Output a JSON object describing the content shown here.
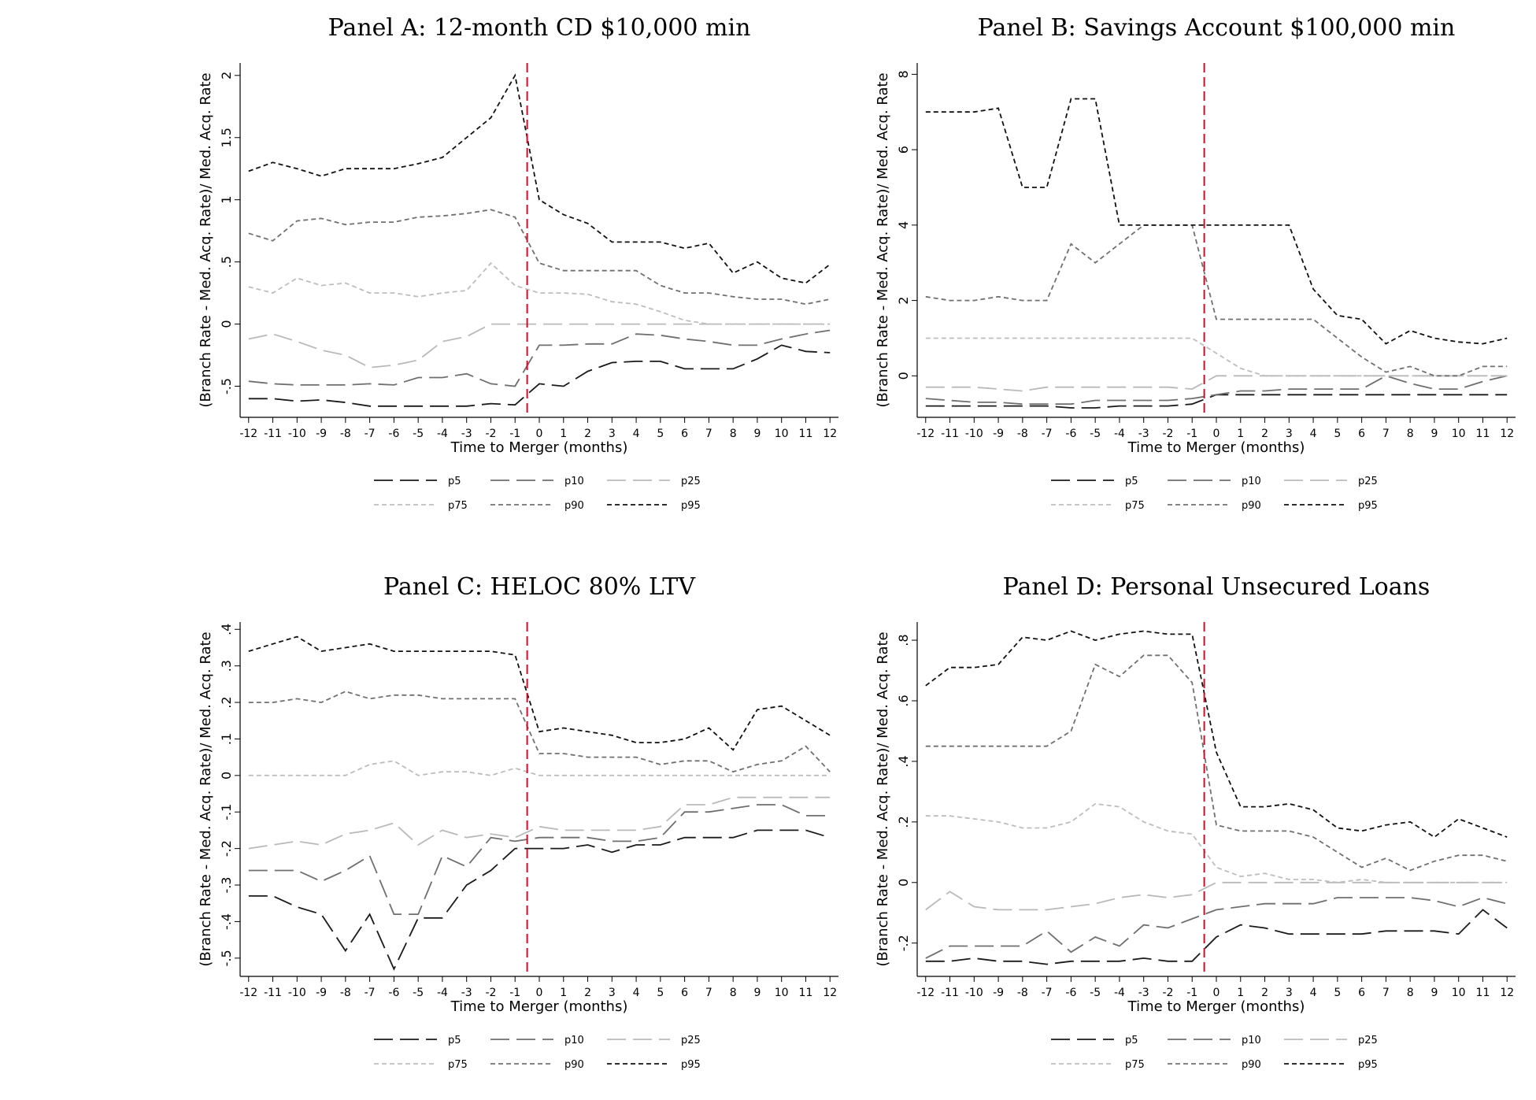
{
  "chart_data": [
    {
      "type": "line",
      "title": "Panel A: 12-month CD $10,000 min",
      "xlabel": "Time to Merger (months)",
      "ylabel": "(Branch Rate - Med. Acq. Rate)/ Med. Acq. Rate",
      "x": [
        -12,
        -11,
        -10,
        -9,
        -8,
        -7,
        -6,
        -5,
        -4,
        -3,
        -2,
        -1,
        0,
        1,
        2,
        3,
        4,
        5,
        6,
        7,
        8,
        9,
        10,
        11,
        12
      ],
      "x_tick_labels": [
        "-12",
        "-11",
        "-10",
        "-9",
        "-8",
        "-7",
        "-6",
        "-5",
        "-4",
        "-3",
        "-2",
        "-1",
        "0",
        "1",
        "2",
        "3",
        "4",
        "5",
        "6",
        "7",
        "8",
        "9",
        "10",
        "11",
        "12"
      ],
      "ylim": [
        -0.75,
        2.1
      ],
      "y_ticks": [
        -0.5,
        0,
        0.5,
        1,
        1.5,
        2
      ],
      "y_tick_labels": [
        "-.5",
        "0",
        ".5",
        "1",
        "1.5",
        "2"
      ],
      "merger_line_x": -0.5,
      "series": [
        {
          "name": "p5",
          "values": [
            -0.6,
            -0.6,
            -0.62,
            -0.61,
            -0.63,
            -0.66,
            -0.66,
            -0.66,
            -0.66,
            -0.66,
            -0.64,
            -0.65,
            -0.48,
            -0.5,
            -0.38,
            -0.31,
            -0.3,
            -0.3,
            -0.36,
            -0.36,
            -0.36,
            -0.28,
            -0.17,
            -0.22,
            -0.23
          ]
        },
        {
          "name": "p10",
          "values": [
            -0.46,
            -0.48,
            -0.49,
            -0.49,
            -0.49,
            -0.48,
            -0.49,
            -0.43,
            -0.43,
            -0.4,
            -0.48,
            -0.5,
            -0.17,
            -0.17,
            -0.16,
            -0.16,
            -0.08,
            -0.09,
            -0.12,
            -0.14,
            -0.17,
            -0.17,
            -0.12,
            -0.08,
            -0.05
          ]
        },
        {
          "name": "p25",
          "values": [
            -0.12,
            -0.08,
            -0.14,
            -0.21,
            -0.25,
            -0.35,
            -0.33,
            -0.29,
            -0.14,
            -0.1,
            0,
            0,
            0,
            0,
            0,
            0,
            0,
            0,
            0,
            0,
            0,
            0,
            0,
            0,
            0
          ]
        },
        {
          "name": "p75",
          "values": [
            0.3,
            0.25,
            0.37,
            0.31,
            0.33,
            0.25,
            0.25,
            0.22,
            0.25,
            0.27,
            0.49,
            0.31,
            0.25,
            0.25,
            0.24,
            0.18,
            0.16,
            0.1,
            0.03,
            0,
            0,
            0,
            0,
            0,
            0
          ]
        },
        {
          "name": "p90",
          "values": [
            0.73,
            0.67,
            0.83,
            0.85,
            0.8,
            0.82,
            0.82,
            0.86,
            0.87,
            0.89,
            0.92,
            0.86,
            0.49,
            0.43,
            0.43,
            0.43,
            0.43,
            0.31,
            0.25,
            0.25,
            0.22,
            0.2,
            0.2,
            0.16,
            0.2
          ]
        },
        {
          "name": "p95",
          "values": [
            1.23,
            1.3,
            1.25,
            1.19,
            1.25,
            1.25,
            1.25,
            1.29,
            1.34,
            1.5,
            1.66,
            2.0,
            1.0,
            0.88,
            0.81,
            0.66,
            0.66,
            0.66,
            0.61,
            0.65,
            0.41,
            0.5,
            0.37,
            0.33,
            0.48
          ]
        }
      ]
    },
    {
      "type": "line",
      "title": "Panel B: Savings Account $100,000 min",
      "xlabel": "Time to Merger (months)",
      "ylabel": "(Branch Rate - Med. Acq. Rate)/ Med. Acq. Rate",
      "x": [
        -12,
        -11,
        -10,
        -9,
        -8,
        -7,
        -6,
        -5,
        -4,
        -3,
        -2,
        -1,
        0,
        1,
        2,
        3,
        4,
        5,
        6,
        7,
        8,
        9,
        10,
        11,
        12
      ],
      "x_tick_labels": [
        "-12",
        "-11",
        "-10",
        "-9",
        "-8",
        "-7",
        "-6",
        "-5",
        "-4",
        "-3",
        "-2",
        "-1",
        "0",
        "1",
        "2",
        "3",
        "4",
        "5",
        "6",
        "7",
        "8",
        "9",
        "10",
        "11",
        "12"
      ],
      "ylim": [
        -1.1,
        8.3
      ],
      "y_ticks": [
        0,
        2,
        4,
        6,
        8
      ],
      "y_tick_labels": [
        "0",
        "2",
        "4",
        "6",
        "8"
      ],
      "merger_line_x": -0.5,
      "series": [
        {
          "name": "p5",
          "values": [
            -0.8,
            -0.8,
            -0.8,
            -0.8,
            -0.8,
            -0.8,
            -0.85,
            -0.85,
            -0.8,
            -0.8,
            -0.8,
            -0.75,
            -0.5,
            -0.5,
            -0.5,
            -0.5,
            -0.5,
            -0.5,
            -0.5,
            -0.5,
            -0.5,
            -0.5,
            -0.5,
            -0.5,
            -0.5
          ]
        },
        {
          "name": "p10",
          "values": [
            -0.6,
            -0.65,
            -0.7,
            -0.7,
            -0.75,
            -0.75,
            -0.75,
            -0.65,
            -0.65,
            -0.65,
            -0.65,
            -0.6,
            -0.5,
            -0.4,
            -0.4,
            -0.35,
            -0.35,
            -0.35,
            -0.35,
            0,
            -0.2,
            -0.35,
            -0.35,
            -0.15,
            0
          ]
        },
        {
          "name": "p25",
          "values": [
            -0.3,
            -0.3,
            -0.3,
            -0.35,
            -0.4,
            -0.3,
            -0.3,
            -0.3,
            -0.3,
            -0.3,
            -0.3,
            -0.35,
            0,
            0,
            0,
            0,
            0,
            0,
            0,
            0,
            0,
            0,
            0,
            0,
            0
          ]
        },
        {
          "name": "p75",
          "values": [
            1,
            1,
            1,
            1,
            1,
            1,
            1,
            1,
            1,
            1,
            1,
            1,
            0.6,
            0.2,
            0,
            0,
            0,
            0,
            0,
            0,
            0,
            0,
            0,
            0,
            0
          ]
        },
        {
          "name": "p90",
          "values": [
            2.1,
            2,
            2,
            2.1,
            2,
            2,
            3.5,
            3,
            3.5,
            4,
            4,
            4,
            1.5,
            1.5,
            1.5,
            1.5,
            1.5,
            1,
            0.5,
            0.1,
            0.25,
            0,
            0,
            0.25,
            0.25
          ]
        },
        {
          "name": "p95",
          "values": [
            7,
            7,
            7,
            7.1,
            5,
            5,
            7.35,
            7.35,
            4,
            4,
            4,
            4,
            4,
            4,
            4,
            4,
            2.3,
            1.6,
            1.5,
            0.85,
            1.2,
            1,
            0.9,
            0.85,
            1
          ]
        }
      ]
    },
    {
      "type": "line",
      "title": "Panel C: HELOC 80% LTV",
      "xlabel": "Time to Merger (months)",
      "ylabel": "(Branch Rate - Med. Acq. Rate)/ Med. Acq. Rate",
      "x": [
        -12,
        -11,
        -10,
        -9,
        -8,
        -7,
        -6,
        -5,
        -4,
        -3,
        -2,
        -1,
        0,
        1,
        2,
        3,
        4,
        5,
        6,
        7,
        8,
        9,
        10,
        11,
        12
      ],
      "x_tick_labels": [
        "-12",
        "-11",
        "-10",
        "-9",
        "-8",
        "-7",
        "-6",
        "-5",
        "-4",
        "-3",
        "-2",
        "-1",
        "0",
        "1",
        "2",
        "3",
        "4",
        "5",
        "6",
        "7",
        "8",
        "9",
        "10",
        "11",
        "12"
      ],
      "ylim": [
        -0.55,
        0.42
      ],
      "y_ticks": [
        -0.5,
        -0.4,
        -0.3,
        -0.2,
        -0.1,
        0,
        0.1,
        0.2,
        0.3,
        0.4
      ],
      "y_tick_labels": [
        "-.5",
        "-.4",
        "-.3",
        "-.2",
        "-.1",
        "0",
        ".1",
        ".2",
        ".3",
        ".4"
      ],
      "merger_line_x": -0.5,
      "series": [
        {
          "name": "p5",
          "values": [
            -0.33,
            -0.33,
            -0.36,
            -0.38,
            -0.48,
            -0.38,
            -0.53,
            -0.39,
            -0.39,
            -0.3,
            -0.26,
            -0.2,
            -0.2,
            -0.2,
            -0.19,
            -0.21,
            -0.19,
            -0.19,
            -0.17,
            -0.17,
            -0.17,
            -0.15,
            -0.15,
            -0.15,
            -0.17
          ]
        },
        {
          "name": "p10",
          "values": [
            -0.26,
            -0.26,
            -0.26,
            -0.29,
            -0.26,
            -0.22,
            -0.38,
            -0.38,
            -0.22,
            -0.25,
            -0.17,
            -0.18,
            -0.17,
            -0.17,
            -0.17,
            -0.18,
            -0.18,
            -0.17,
            -0.1,
            -0.1,
            -0.09,
            -0.08,
            -0.08,
            -0.11,
            -0.11
          ]
        },
        {
          "name": "p25",
          "values": [
            -0.2,
            -0.19,
            -0.18,
            -0.19,
            -0.16,
            -0.15,
            -0.13,
            -0.19,
            -0.15,
            -0.17,
            -0.16,
            -0.17,
            -0.14,
            -0.15,
            -0.15,
            -0.15,
            -0.15,
            -0.14,
            -0.08,
            -0.08,
            -0.06,
            -0.06,
            -0.06,
            -0.06,
            -0.06
          ]
        },
        {
          "name": "p75",
          "values": [
            0,
            0,
            0,
            0,
            0,
            0.03,
            0.04,
            0,
            0.01,
            0.01,
            0,
            0.02,
            0,
            0,
            0,
            0,
            0,
            0,
            0,
            0,
            0,
            0,
            0,
            0,
            0
          ]
        },
        {
          "name": "p90",
          "values": [
            0.2,
            0.2,
            0.21,
            0.2,
            0.23,
            0.21,
            0.22,
            0.22,
            0.21,
            0.21,
            0.21,
            0.21,
            0.06,
            0.06,
            0.05,
            0.05,
            0.05,
            0.03,
            0.04,
            0.04,
            0.01,
            0.03,
            0.04,
            0.08,
            0.01
          ]
        },
        {
          "name": "p95",
          "values": [
            0.34,
            0.36,
            0.38,
            0.34,
            0.35,
            0.36,
            0.34,
            0.34,
            0.34,
            0.34,
            0.34,
            0.33,
            0.12,
            0.13,
            0.12,
            0.11,
            0.09,
            0.09,
            0.1,
            0.13,
            0.07,
            0.18,
            0.19,
            0.15,
            0.11
          ]
        }
      ]
    },
    {
      "type": "line",
      "title": "Panel D: Personal Unsecured Loans",
      "xlabel": "Time to Merger (months)",
      "ylabel": "(Branch Rate - Med. Acq. Rate)/ Med. Acq. Rate",
      "x": [
        -12,
        -11,
        -10,
        -9,
        -8,
        -7,
        -6,
        -5,
        -4,
        -3,
        -2,
        -1,
        0,
        1,
        2,
        3,
        4,
        5,
        6,
        7,
        8,
        9,
        10,
        11,
        12
      ],
      "x_tick_labels": [
        "-12",
        "-11",
        "-10",
        "-9",
        "-8",
        "-7",
        "-6",
        "-5",
        "-4",
        "-3",
        "-2",
        "-1",
        "0",
        "1",
        "2",
        "3",
        "4",
        "5",
        "6",
        "7",
        "8",
        "9",
        "10",
        "11",
        "12"
      ],
      "ylim": [
        -0.31,
        0.86
      ],
      "y_ticks": [
        -0.2,
        0,
        0.2,
        0.4,
        0.6,
        0.8
      ],
      "y_tick_labels": [
        "-.2",
        "0",
        ".2",
        ".4",
        ".6",
        ".8"
      ],
      "merger_line_x": -0.5,
      "series": [
        {
          "name": "p5",
          "values": [
            -0.26,
            -0.26,
            -0.25,
            -0.26,
            -0.26,
            -0.27,
            -0.26,
            -0.26,
            -0.26,
            -0.25,
            -0.26,
            -0.26,
            -0.18,
            -0.14,
            -0.15,
            -0.17,
            -0.17,
            -0.17,
            -0.17,
            -0.16,
            -0.16,
            -0.16,
            -0.17,
            -0.09,
            -0.15
          ]
        },
        {
          "name": "p10",
          "values": [
            -0.25,
            -0.21,
            -0.21,
            -0.21,
            -0.21,
            -0.16,
            -0.23,
            -0.18,
            -0.21,
            -0.14,
            -0.15,
            -0.12,
            -0.09,
            -0.08,
            -0.07,
            -0.07,
            -0.07,
            -0.05,
            -0.05,
            -0.05,
            -0.05,
            -0.06,
            -0.08,
            -0.05,
            -0.07
          ]
        },
        {
          "name": "p25",
          "values": [
            -0.09,
            -0.03,
            -0.08,
            -0.09,
            -0.09,
            -0.09,
            -0.08,
            -0.07,
            -0.05,
            -0.04,
            -0.05,
            -0.04,
            0,
            0,
            0,
            0,
            0,
            0,
            0,
            0,
            0,
            0,
            0,
            0,
            0
          ]
        },
        {
          "name": "p75",
          "values": [
            0.22,
            0.22,
            0.21,
            0.2,
            0.18,
            0.18,
            0.2,
            0.26,
            0.25,
            0.2,
            0.17,
            0.16,
            0.05,
            0.02,
            0.03,
            0.01,
            0.01,
            0,
            0.01,
            0,
            0,
            0,
            0,
            0,
            0
          ]
        },
        {
          "name": "p90",
          "values": [
            0.45,
            0.45,
            0.45,
            0.45,
            0.45,
            0.45,
            0.5,
            0.72,
            0.68,
            0.75,
            0.75,
            0.66,
            0.19,
            0.17,
            0.17,
            0.17,
            0.15,
            0.1,
            0.05,
            0.08,
            0.04,
            0.07,
            0.09,
            0.09,
            0.07
          ]
        },
        {
          "name": "p95",
          "values": [
            0.65,
            0.71,
            0.71,
            0.72,
            0.81,
            0.8,
            0.83,
            0.8,
            0.82,
            0.83,
            0.82,
            0.82,
            0.43,
            0.25,
            0.25,
            0.26,
            0.24,
            0.18,
            0.17,
            0.19,
            0.2,
            0.15,
            0.21,
            0.18,
            0.15
          ]
        }
      ]
    }
  ],
  "legend": {
    "series_styles": [
      {
        "name": "p5",
        "color": "#1a1a1a",
        "dash": "long-dash"
      },
      {
        "name": "p10",
        "color": "#6f6f6f",
        "dash": "long-dash"
      },
      {
        "name": "p25",
        "color": "#b9b9b9",
        "dash": "long-dash"
      },
      {
        "name": "p75",
        "color": "#bdbdbd",
        "dash": "short-dash"
      },
      {
        "name": "p90",
        "color": "#707070",
        "dash": "short-dash"
      },
      {
        "name": "p95",
        "color": "#111111",
        "dash": "short-dash"
      }
    ],
    "merger_line_color": "#c8102e"
  }
}
